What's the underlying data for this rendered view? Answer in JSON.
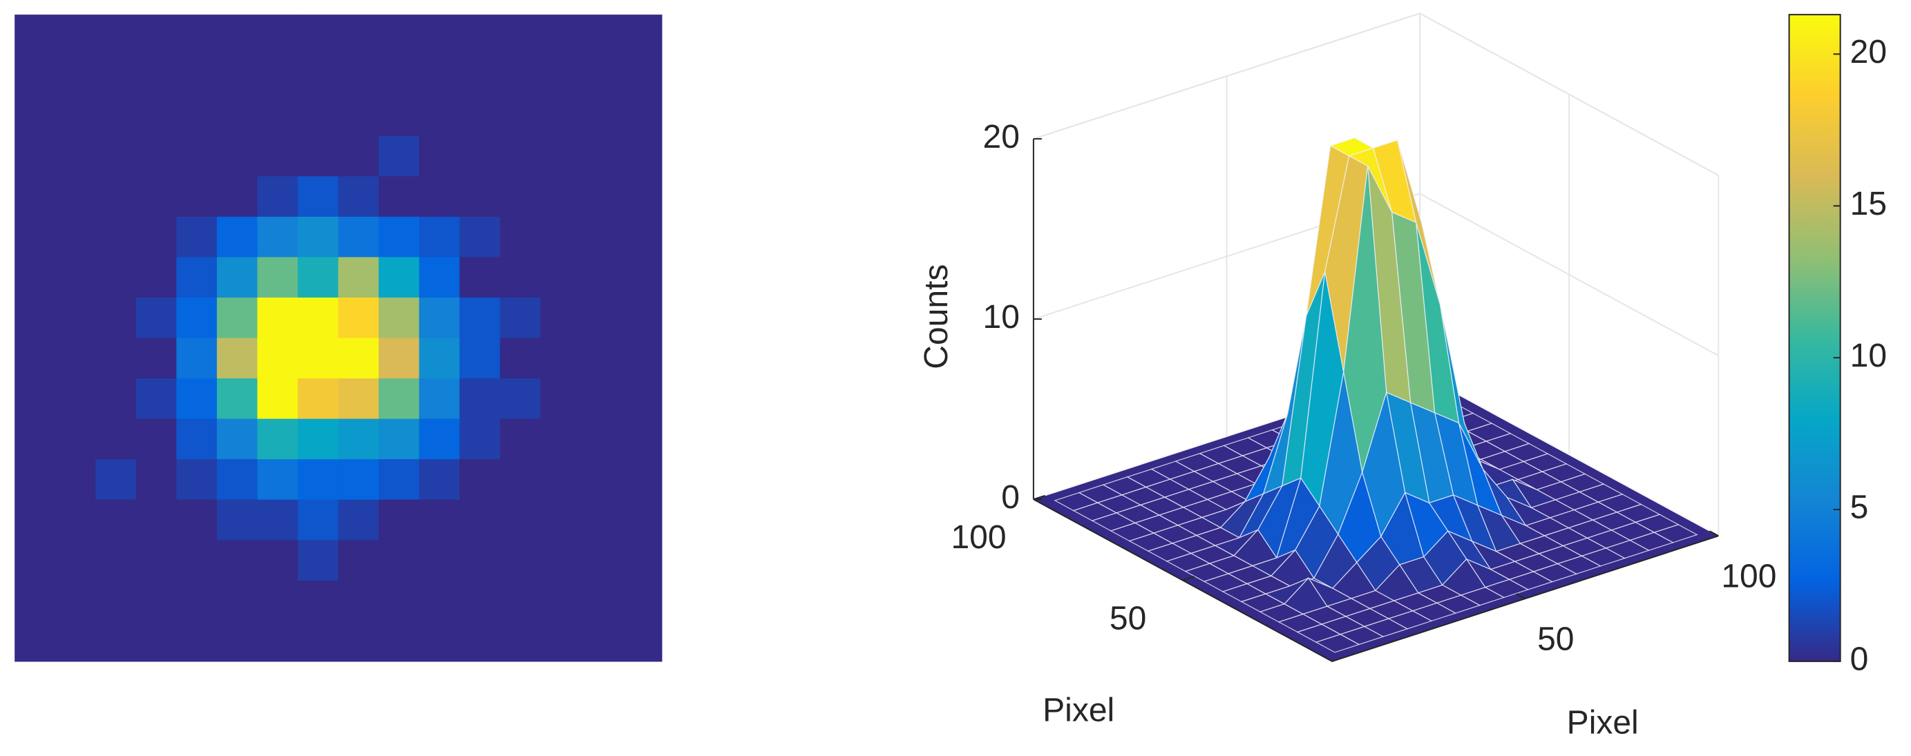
{
  "chart_data": [
    {
      "type": "heatmap",
      "clim": [
        0,
        21.3
      ],
      "colormap": [
        "#352a87",
        "#0363e1",
        "#1485d4",
        "#06a7c6",
        "#38b99e",
        "#92bf73",
        "#d9ba56",
        "#fcce2e",
        "#f9fb0e"
      ],
      "values": [
        [
          0,
          0,
          0,
          0,
          0,
          0,
          0,
          0,
          0,
          0,
          0,
          0,
          0,
          0,
          0,
          0
        ],
        [
          0,
          0,
          0,
          0,
          0,
          0,
          0,
          0,
          0,
          0,
          0,
          0,
          0,
          0,
          0,
          0
        ],
        [
          0,
          0,
          0,
          0,
          0,
          0,
          0,
          0,
          0,
          0,
          0,
          0,
          0,
          0,
          0,
          0
        ],
        [
          0,
          0,
          0,
          0,
          0,
          0,
          0,
          0,
          0,
          1,
          0,
          0,
          0,
          0,
          0,
          0
        ],
        [
          0,
          0,
          0,
          0,
          0,
          0,
          1,
          2,
          1,
          0,
          0,
          0,
          0,
          0,
          0,
          0
        ],
        [
          0,
          0,
          0,
          0,
          1,
          3,
          5,
          6,
          4,
          3,
          2,
          1,
          0,
          0,
          0,
          0
        ],
        [
          0,
          0,
          0,
          0,
          2,
          6,
          12,
          9,
          14,
          8,
          3,
          0,
          0,
          0,
          0,
          0
        ],
        [
          0,
          0,
          0,
          1,
          3,
          12,
          21,
          21,
          19,
          14,
          5,
          2,
          1,
          0,
          0,
          0
        ],
        [
          0,
          0,
          0,
          0,
          4,
          15,
          21,
          21,
          21,
          16,
          6,
          2,
          0,
          0,
          0,
          0
        ],
        [
          0,
          0,
          0,
          1,
          3,
          10,
          21,
          18,
          17,
          12,
          5,
          1,
          1,
          0,
          0,
          0
        ],
        [
          0,
          0,
          0,
          0,
          2,
          5,
          9,
          8,
          7,
          6,
          3,
          1,
          0,
          0,
          0,
          0
        ],
        [
          0,
          0,
          1,
          0,
          1,
          2,
          4,
          3,
          3,
          2,
          1,
          0,
          0,
          0,
          0,
          0
        ],
        [
          0,
          0,
          0,
          0,
          0,
          1,
          1,
          2,
          1,
          0,
          0,
          0,
          0,
          0,
          0,
          0
        ],
        [
          0,
          0,
          0,
          0,
          0,
          0,
          0,
          1,
          0,
          0,
          0,
          0,
          0,
          0,
          0,
          0
        ],
        [
          0,
          0,
          0,
          0,
          0,
          0,
          0,
          0,
          0,
          0,
          0,
          0,
          0,
          0,
          0,
          0
        ],
        [
          0,
          0,
          0,
          0,
          0,
          0,
          0,
          0,
          0,
          0,
          0,
          0,
          0,
          0,
          0,
          0
        ]
      ]
    },
    {
      "type": "surface",
      "xlabel": "Pixel",
      "ylabel": "Pixel",
      "zlabel": "Counts",
      "xlim": [
        0,
        100
      ],
      "ylim": [
        0,
        100
      ],
      "zlim": [
        0,
        20
      ],
      "xticks": [
        50,
        100
      ],
      "yticks": [
        50,
        100
      ],
      "zticks": [
        0,
        10,
        20
      ],
      "grid": true,
      "clim": [
        0,
        21.3
      ],
      "colorbar_ticks": [
        0,
        5,
        10,
        15,
        20
      ],
      "colormap": [
        "#352a87",
        "#0363e1",
        "#1485d4",
        "#06a7c6",
        "#38b99e",
        "#92bf73",
        "#d9ba56",
        "#fcce2e",
        "#f9fb0e"
      ],
      "values": [
        [
          0,
          0,
          0,
          0,
          0,
          0,
          0,
          0,
          0,
          0,
          0,
          0,
          0,
          0,
          0,
          0
        ],
        [
          0,
          0,
          0,
          0,
          0,
          0,
          0,
          0,
          0,
          0,
          0,
          0,
          0,
          0,
          0,
          0
        ],
        [
          0,
          0,
          0,
          0,
          0,
          0,
          0,
          0,
          0,
          0,
          0,
          0,
          0,
          0,
          0,
          0
        ],
        [
          0,
          0,
          0,
          0,
          0,
          0,
          0,
          0,
          0,
          1,
          0,
          0,
          0,
          0,
          0,
          0
        ],
        [
          0,
          0,
          0,
          0,
          0,
          0,
          1,
          2,
          1,
          0,
          0,
          0,
          0,
          0,
          0,
          0
        ],
        [
          0,
          0,
          0,
          0,
          1,
          3,
          5,
          6,
          4,
          3,
          2,
          1,
          0,
          0,
          0,
          0
        ],
        [
          0,
          0,
          0,
          0,
          2,
          6,
          12,
          9,
          14,
          8,
          3,
          0,
          0,
          0,
          0,
          0
        ],
        [
          0,
          0,
          0,
          1,
          3,
          12,
          21,
          21,
          19,
          14,
          5,
          2,
          1,
          0,
          0,
          0
        ],
        [
          0,
          0,
          0,
          0,
          4,
          15,
          21,
          21,
          21,
          16,
          6,
          2,
          0,
          0,
          0,
          0
        ],
        [
          0,
          0,
          0,
          1,
          3,
          10,
          21,
          18,
          17,
          12,
          5,
          1,
          1,
          0,
          0,
          0
        ],
        [
          0,
          0,
          0,
          0,
          2,
          5,
          9,
          8,
          7,
          6,
          3,
          1,
          0,
          0,
          0,
          0
        ],
        [
          0,
          0,
          1,
          0,
          1,
          2,
          4,
          3,
          3,
          2,
          1,
          0,
          0,
          0,
          0,
          0
        ],
        [
          0,
          0,
          0,
          0,
          0,
          1,
          1,
          2,
          1,
          0,
          0,
          0,
          0,
          0,
          0,
          0
        ],
        [
          0,
          0,
          0,
          0,
          0,
          0,
          0,
          1,
          0,
          0,
          0,
          0,
          0,
          0,
          0,
          0
        ],
        [
          0,
          0,
          0,
          0,
          0,
          0,
          0,
          0,
          0,
          0,
          0,
          0,
          0,
          0,
          0,
          0
        ],
        [
          0,
          0,
          0,
          0,
          0,
          0,
          0,
          0,
          0,
          0,
          0,
          0,
          0,
          0,
          0,
          0
        ]
      ]
    }
  ]
}
